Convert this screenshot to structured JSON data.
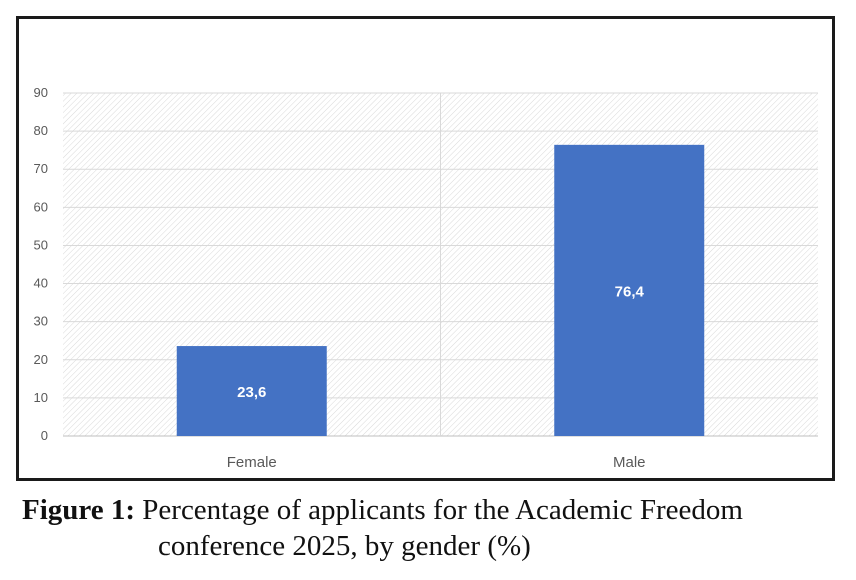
{
  "chart_data": {
    "type": "bar",
    "categories": [
      "Female",
      "Male"
    ],
    "values": [
      23.6,
      76.4
    ],
    "data_labels": [
      "23,6",
      "76,4"
    ],
    "yticks": [
      "0",
      "10",
      "20",
      "30",
      "40",
      "50",
      "60",
      "70",
      "80",
      "90"
    ],
    "ylim": [
      0,
      90
    ],
    "grid": true,
    "bar_color": "#4472C4",
    "title": "",
    "xlabel": "",
    "ylabel": ""
  },
  "caption": {
    "label": "Figure 1:",
    "line1": "Percentage of applicants for the Academic Freedom",
    "line2": "conference 2025, by gender (%)"
  }
}
